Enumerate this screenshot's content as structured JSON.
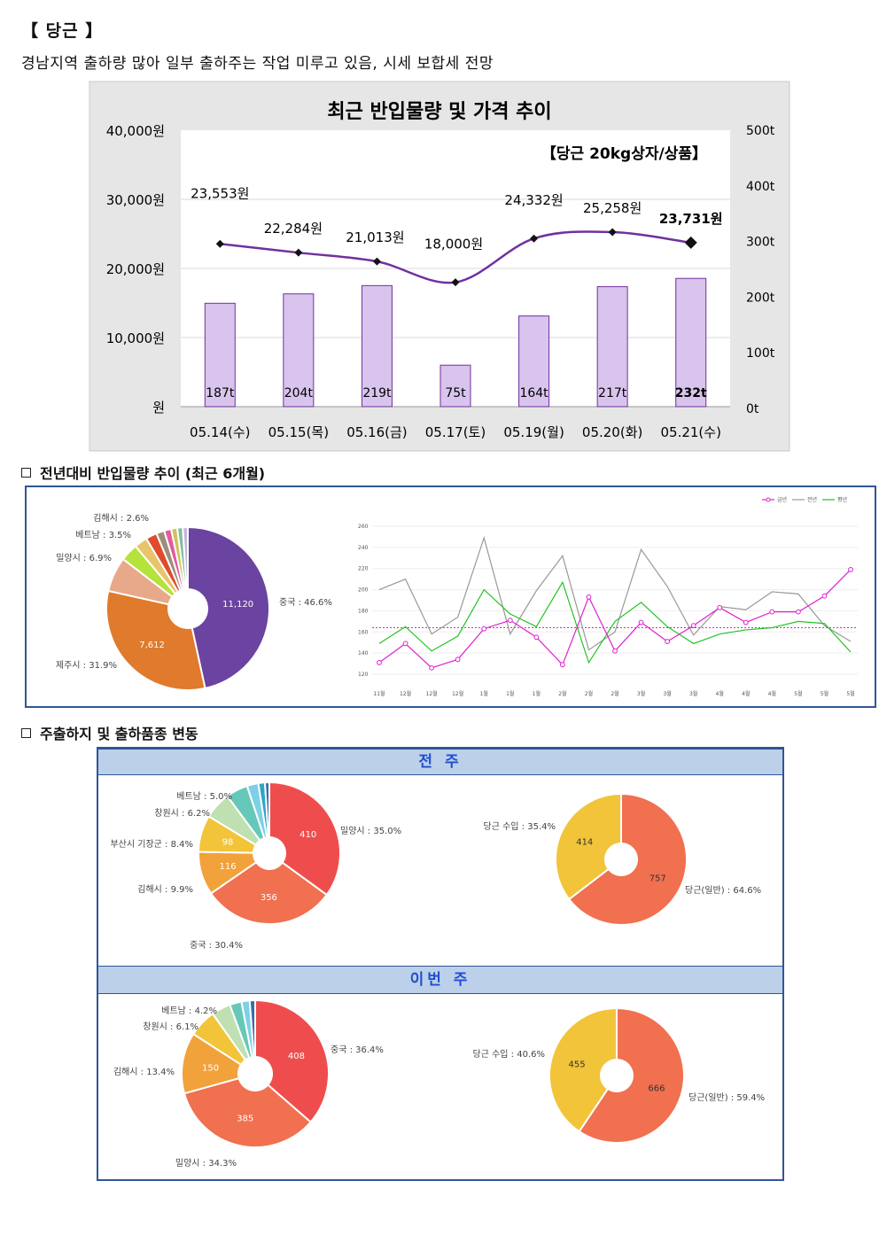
{
  "header": {
    "title": "【 당근 】",
    "subtitle": "경남지역 출하량 많아 일부 출하주는 작업 미루고 있음, 시세 보합세 전망"
  },
  "chart1": {
    "title": "최근 반입물량 및 가격 추이",
    "tag": "【당근 20kg상자/상품】",
    "left_ticks": [
      "40,000원",
      "30,000원",
      "20,000원",
      "10,000원",
      "원"
    ],
    "right_ticks": [
      "500t",
      "400t",
      "300t",
      "200t",
      "100t",
      "0t"
    ],
    "colors": {
      "bar": "#d8c4ec",
      "bar_stroke": "#7030a0",
      "line": "#7030a0"
    }
  },
  "chart_data": [
    {
      "type": "bar+line",
      "title": "최근 반입물량 및 가격 추이",
      "subtitle": "【당근 20kg상자/상품】",
      "categories": [
        "05.14(수)",
        "05.15(목)",
        "05.16(금)",
        "05.17(토)",
        "05.19(월)",
        "05.20(화)",
        "05.21(수)"
      ],
      "series": [
        {
          "values": [
            187,
            204,
            219,
            75,
            164,
            217,
            232
          ],
          "labels": [
            "187t",
            "204t",
            "219t",
            "75t",
            "164t",
            "217t",
            "232t"
          ],
          "axis": "right",
          "ylim": [
            0,
            500
          ]
        },
        {
          "values": [
            23553,
            22284,
            21013,
            18000,
            24332,
            25258,
            23731
          ],
          "labels": [
            "23,553원",
            "22,284원",
            "21,013원",
            "18,000원",
            "24,332원",
            "25,258원",
            "23,731원"
          ],
          "axis": "left",
          "ylim": [
            0,
            40000
          ]
        }
      ]
    },
    {
      "type": "pie",
      "title": "전년대비 반입물량 추이 (최근 6개월)",
      "slices": [
        {
          "label": "중국 : 46.6%",
          "value": 46.6,
          "num": "11,120",
          "color": "#6b43a0"
        },
        {
          "label": "제주시 : 31.9%",
          "value": 31.9,
          "num": "7,612",
          "color": "#e07a2d"
        },
        {
          "label": "밀양시 : 6.9%",
          "value": 6.9,
          "color": "#e8a98a"
        },
        {
          "label": "베트남 : 3.5%",
          "value": 3.5,
          "color": "#b5e23b"
        },
        {
          "label": "김해시 : 2.6%",
          "value": 2.6,
          "color": "#e8c46a"
        },
        {
          "label": "",
          "value": 2.2,
          "color": "#e04a2d"
        },
        {
          "label": "",
          "value": 1.6,
          "color": "#9c8f7a"
        },
        {
          "label": "",
          "value": 1.4,
          "color": "#e35b9e"
        },
        {
          "label": "",
          "value": 1.2,
          "color": "#cfc25a"
        },
        {
          "label": "",
          "value": 1.1,
          "color": "#7fbf9c"
        },
        {
          "label": "",
          "value": 1.0,
          "color": "#c9b4e0"
        }
      ]
    },
    {
      "type": "line",
      "x": [
        "11월",
        "12월",
        "12월",
        "12월",
        "1월",
        "1월",
        "1월",
        "2월",
        "2월",
        "2월",
        "3월",
        "3월",
        "3월",
        "4월",
        "4월",
        "4월",
        "5월",
        "5월",
        "5월"
      ],
      "yticks": [
        "260",
        "240",
        "220",
        "200",
        "180",
        "160",
        "140",
        "120"
      ],
      "ylim": [
        115,
        265
      ],
      "series": [
        {
          "name": "금년",
          "color": "#e020d0",
          "values": [
            131,
            149,
            126,
            134,
            163,
            171,
            155,
            129,
            193,
            142,
            169,
            151,
            166,
            183,
            169,
            179,
            179,
            194,
            219
          ]
        },
        {
          "name": "전년",
          "color": "#999999",
          "values": [
            200,
            210,
            158,
            174,
            249,
            158,
            199,
            232,
            143,
            160,
            238,
            203,
            157,
            184,
            181,
            198,
            196,
            166,
            151
          ]
        },
        {
          "name": "평년",
          "color": "#22c422",
          "values": [
            149,
            165,
            142,
            156,
            200,
            177,
            165,
            207,
            131,
            170,
            188,
            165,
            149,
            158,
            162,
            164,
            170,
            168,
            141
          ]
        }
      ],
      "reference": 164
    },
    {
      "type": "pie",
      "group": "전 주",
      "slices": [
        {
          "label": "밀양시 : 35.0%",
          "value": 35.0,
          "num": "410",
          "color": "#ef4d4d"
        },
        {
          "label": "중국 : 30.4%",
          "value": 30.4,
          "num": "356",
          "color": "#f07050"
        },
        {
          "label": "김해시 : 9.9%",
          "value": 9.9,
          "num": "116",
          "color": "#f2a23a"
        },
        {
          "label": "부산시 기장군 : 8.4%",
          "value": 8.4,
          "num": "98",
          "color": "#f2c43a"
        },
        {
          "label": "창원시 : 6.2%",
          "value": 6.2,
          "color": "#bfe0b0"
        },
        {
          "label": "베트남 : 5.0%",
          "value": 5.0,
          "color": "#66c8b8"
        },
        {
          "label": "",
          "value": 2.6,
          "color": "#7ed0e6"
        },
        {
          "label": "",
          "value": 1.5,
          "color": "#2fa4c8"
        },
        {
          "label": "",
          "value": 1.0,
          "color": "#3a6ea5"
        }
      ]
    },
    {
      "type": "pie",
      "group": "전 주",
      "slices": [
        {
          "label": "당근(일반) : 64.6%",
          "value": 64.6,
          "num": "757",
          "color": "#f07050"
        },
        {
          "label": "당근 수입 : 35.4%",
          "value": 35.4,
          "num": "414",
          "color": "#f2c43a"
        }
      ]
    },
    {
      "type": "pie",
      "group": "이번 주",
      "slices": [
        {
          "label": "중국 : 36.4%",
          "value": 36.4,
          "num": "408",
          "color": "#ef4d4d"
        },
        {
          "label": "밀양시 : 34.3%",
          "value": 34.3,
          "num": "385",
          "color": "#f07050"
        },
        {
          "label": "김해시 : 13.4%",
          "value": 13.4,
          "num": "150",
          "color": "#f2a23a"
        },
        {
          "label": "창원시 : 6.1%",
          "value": 6.1,
          "color": "#f2c43a"
        },
        {
          "label": "베트남 : 4.2%",
          "value": 4.2,
          "color": "#bfe0b0"
        },
        {
          "label": "",
          "value": 2.6,
          "color": "#66c8b8"
        },
        {
          "label": "",
          "value": 1.8,
          "color": "#7ed0e6"
        },
        {
          "label": "",
          "value": 1.2,
          "color": "#3a6ea5"
        }
      ]
    },
    {
      "type": "pie",
      "group": "이번 주",
      "slices": [
        {
          "label": "당근(일반) : 59.4%",
          "value": 59.4,
          "num": "666",
          "color": "#f07050"
        },
        {
          "label": "당근 수입 : 40.6%",
          "value": 40.6,
          "num": "455",
          "color": "#f2c43a"
        }
      ]
    }
  ],
  "section2": {
    "title": "전년대비 반입물량 추이 (최근 6개월)"
  },
  "section3": {
    "title": "주출하지 및 출하품종 변동",
    "band1": "전 주",
    "band2": "이번 주"
  }
}
